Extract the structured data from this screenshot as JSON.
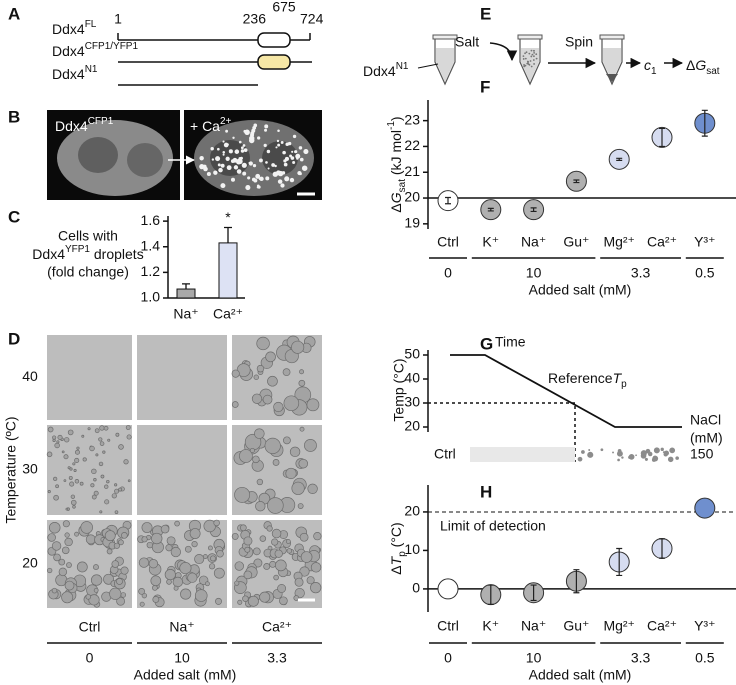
{
  "panels": {
    "A": {
      "letter": "A",
      "constructs": [
        {
          "name": "Ddx4",
          "sup": "FL"
        },
        {
          "name": "Ddx4",
          "sup": "CFP1/YFP1"
        },
        {
          "name": "Ddx4",
          "sup": "N1"
        }
      ],
      "residues": [
        1,
        236,
        675,
        724
      ]
    },
    "B": {
      "letter": "B",
      "left": {
        "name": "Ddx4",
        "sup": "CFP1"
      },
      "right": {
        "name": "+ Ca",
        "sup": "2+"
      }
    },
    "D": {
      "letter": "D",
      "ylabel": "Temperature (ºC)",
      "rows": [
        40,
        30,
        20
      ],
      "columns": [
        "Ctrl",
        "Na⁺",
        "Ca²⁺"
      ],
      "concentrations": [
        0,
        10,
        3.3
      ],
      "xlabel": "Added salt (mM)"
    },
    "E": {
      "letter": "E",
      "protein": {
        "name": "Ddx4",
        "sup": "N1"
      },
      "steps": [
        "Salt",
        "Spin"
      ],
      "c": {
        "it": "c",
        "sub": "1"
      },
      "dg": {
        "name": "Δ",
        "it": "G",
        "sub": "sat"
      }
    },
    "G": {
      "letter": "G",
      "ylabel": "Temp (°C)",
      "yticks": [
        50,
        40,
        30,
        20
      ],
      "time": "Time",
      "ref": {
        "name": "Reference",
        "it": "T",
        "sub": "p"
      },
      "salt": [
        "NaCl",
        "(mM)"
      ],
      "row": "Ctrl",
      "concentration": 150
    }
  },
  "chart_data": [
    {
      "type": "bar",
      "panel": "C",
      "ylabel": {
        "line1": "Cells with",
        "line2": {
          "name": "Ddx4",
          "sup": "YFP1",
          "rest": " droplets"
        },
        "line3": "(fold change)"
      },
      "categories": [
        "Na⁺",
        "Ca²⁺"
      ],
      "values": [
        1.07,
        1.43
      ],
      "errors": [
        0.04,
        0.12
      ],
      "colors": [
        "#a9a9a9",
        "#dde2f4"
      ],
      "ylim": [
        1.0,
        1.64
      ],
      "yticks": [
        {
          "value": 1.0,
          "label": "1.0"
        },
        1.2,
        1.4,
        1.6
      ],
      "annotation": "*"
    },
    {
      "type": "dot",
      "panel": "F",
      "ylabel": {
        "name": "Δ",
        "it": "G",
        "sub": "sat",
        "rest": " (kJ mol",
        "sup": "-1",
        "end": ")"
      },
      "ylim": [
        18.8,
        23.8
      ],
      "yticks": [
        19,
        20,
        21,
        22,
        23
      ],
      "reference_line": 20,
      "xlabel": "Added salt (mM)",
      "groups": [
        {
          "label": 0,
          "points": [
            {
              "category": "Ctrl",
              "value": 19.9,
              "error": 0.12,
              "color": "#ffffff"
            }
          ]
        },
        {
          "label": 10,
          "points": [
            {
              "category": "K⁺",
              "value": 19.55,
              "error": 0.05,
              "color": "#b0b0b0"
            },
            {
              "category": "Na⁺",
              "value": 19.55,
              "error": 0.07,
              "color": "#b0b0b0"
            },
            {
              "category": "Gu⁺",
              "value": 20.65,
              "error": 0.05,
              "color": "#b0b0b0"
            }
          ]
        },
        {
          "label": 3.3,
          "points": [
            {
              "category": "Mg²⁺",
              "value": 21.5,
              "error": 0.04,
              "color": "#d6dcf0"
            },
            {
              "category": "Ca²⁺",
              "value": 22.35,
              "error": 0.35,
              "color": "#d6dcf0"
            }
          ]
        },
        {
          "label": 0.5,
          "points": [
            {
              "category": "Y³⁺",
              "value": 22.9,
              "error": 0.5,
              "color": "#6f8fce"
            }
          ]
        }
      ]
    },
    {
      "type": "dot",
      "panel": "H",
      "ylabel": {
        "name": "Δ",
        "it": "T",
        "sub": "p",
        "rest": " (°C)"
      },
      "ylim": [
        -6,
        27
      ],
      "yticks": [
        0,
        10,
        20
      ],
      "reference_line": 0,
      "limit_line": 20,
      "limit_label": "Limit of detection",
      "xlabel": "Added salt (mM)",
      "groups": [
        {
          "label": 0,
          "points": [
            {
              "category": "Ctrl",
              "value": 0,
              "error": null,
              "color": "#ffffff"
            }
          ]
        },
        {
          "label": 10,
          "points": [
            {
              "category": "K⁺",
              "value": -1.5,
              "error": 2.5,
              "color": "#b0b0b0"
            },
            {
              "category": "Na⁺",
              "value": -1,
              "error": 2,
              "color": "#b0b0b0"
            },
            {
              "category": "Gu⁺",
              "value": 2,
              "error": 3,
              "color": "#b0b0b0"
            }
          ]
        },
        {
          "label": 3.3,
          "points": [
            {
              "category": "Mg²⁺",
              "value": 7,
              "error": 3.5,
              "color": "#d6dcf0"
            },
            {
              "category": "Ca²⁺",
              "value": 10.5,
              "error": 2.5,
              "color": "#d6dcf0"
            }
          ]
        },
        {
          "label": 0.5,
          "points": [
            {
              "category": "Y³⁺",
              "value": 21,
              "error": null,
              "color": "#6f8fce"
            }
          ]
        }
      ]
    }
  ]
}
